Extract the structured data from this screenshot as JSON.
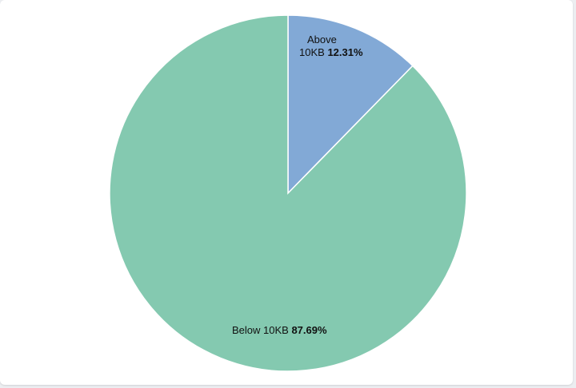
{
  "chart_data": {
    "type": "pie",
    "slices": [
      {
        "label": "Above 10KB",
        "label_line1": "Above",
        "label_line2": "10KB",
        "value": 12.31,
        "value_text": "12.31%",
        "color": "#82a9d6"
      },
      {
        "label": "Below 10KB",
        "value": 87.69,
        "value_text": "87.69%",
        "color": "#84c9b0"
      }
    ],
    "start_angle": "top",
    "direction": "clockwise",
    "slice_border_color": "#ffffff"
  }
}
